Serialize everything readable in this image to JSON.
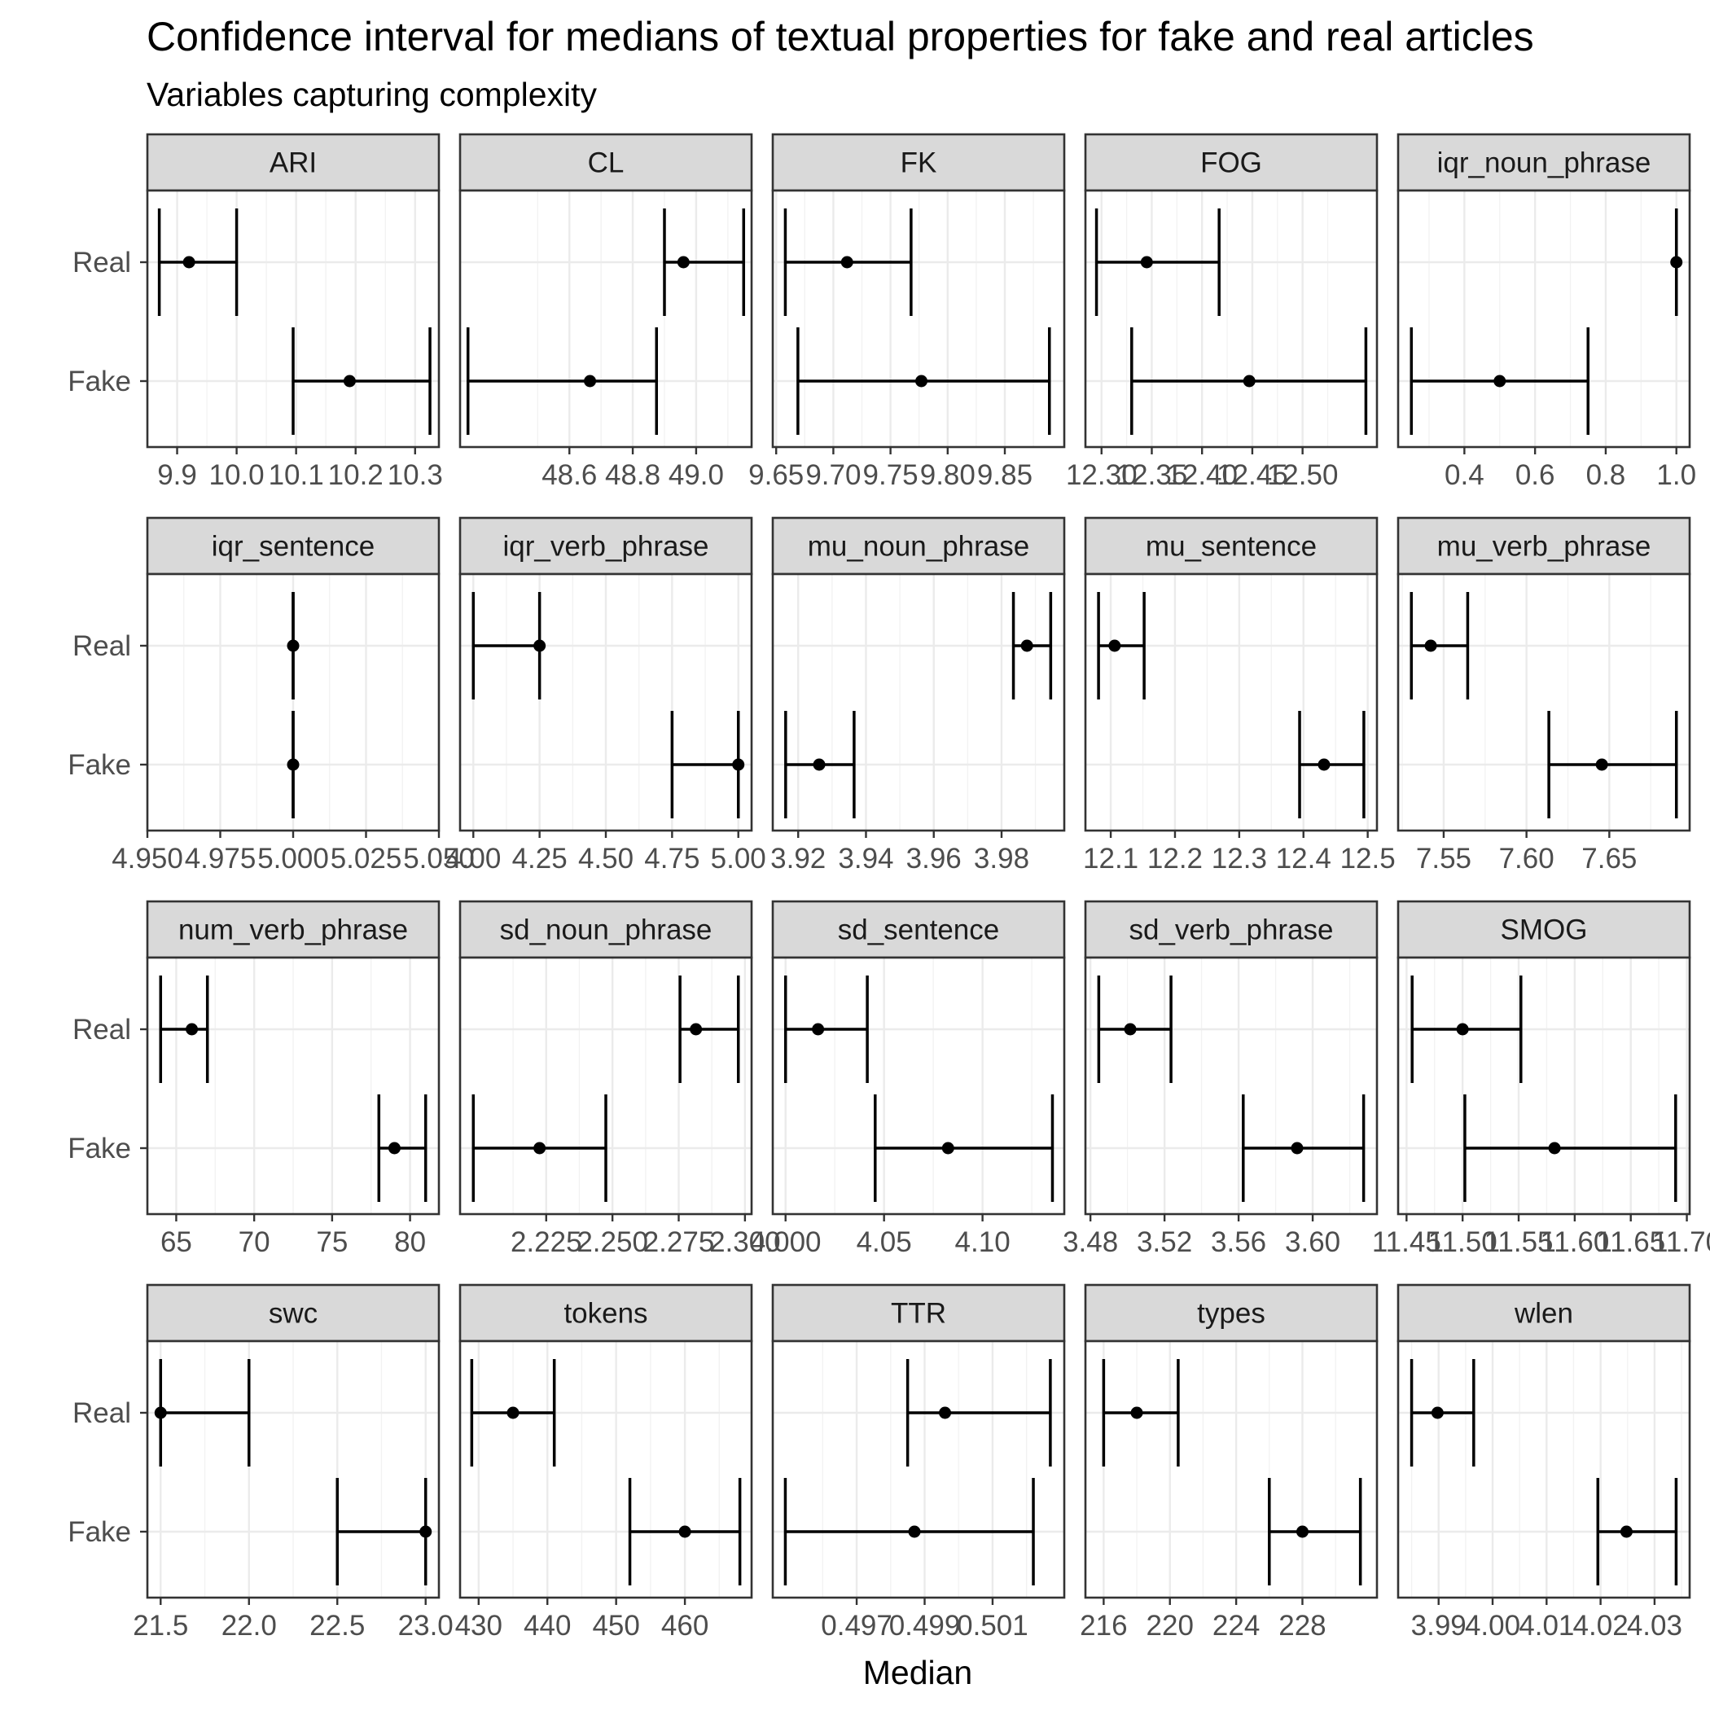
{
  "chart_data": {
    "type": "errorbar",
    "title": "Confidence interval for medians of textual properties for fake and real articles",
    "subtitle": "Variables capturing complexity",
    "xlabel": "Median",
    "ylabel": "",
    "y_categories": [
      "Real",
      "Fake"
    ],
    "facets": [
      {
        "name": "ARI",
        "xlim": [
          9.85,
          10.34
        ],
        "xticks": [
          "9.9",
          "10.0",
          "10.1",
          "10.2",
          "10.3"
        ],
        "xtick_values": [
          9.9,
          10.0,
          10.1,
          10.2,
          10.3
        ],
        "data": [
          {
            "group": "Real",
            "median": 9.92,
            "lower": 9.87,
            "upper": 10.0
          },
          {
            "group": "Fake",
            "median": 10.19,
            "lower": 10.095,
            "upper": 10.325
          }
        ]
      },
      {
        "name": "CL",
        "xlim": [
          48.255,
          49.175
        ],
        "xticks": [
          "48.6",
          "48.8",
          "49.0"
        ],
        "xtick_values": [
          48.6,
          48.8,
          49.0
        ],
        "data": [
          {
            "group": "Real",
            "median": 48.96,
            "lower": 48.9,
            "upper": 49.15
          },
          {
            "group": "Fake",
            "median": 48.665,
            "lower": 48.28,
            "upper": 48.875
          }
        ]
      },
      {
        "name": "FK",
        "xlim": [
          9.647,
          9.902
        ],
        "xticks": [
          "9.65",
          "9.70",
          "9.75",
          "9.80",
          "9.85"
        ],
        "xtick_values": [
          9.65,
          9.7,
          9.75,
          9.8,
          9.85
        ],
        "data": [
          {
            "group": "Real",
            "median": 9.712,
            "lower": 9.658,
            "upper": 9.768
          },
          {
            "group": "Fake",
            "median": 9.777,
            "lower": 9.669,
            "upper": 9.889
          }
        ]
      },
      {
        "name": "FOG",
        "xlim": [
          12.284,
          12.574
        ],
        "xticks": [
          "12.30",
          "12.35",
          "12.40",
          "12.45",
          "12.50"
        ],
        "xtick_values": [
          12.3,
          12.35,
          12.4,
          12.45,
          12.5
        ],
        "data": [
          {
            "group": "Real",
            "median": 12.345,
            "lower": 12.295,
            "upper": 12.417
          },
          {
            "group": "Fake",
            "median": 12.447,
            "lower": 12.33,
            "upper": 12.563
          }
        ]
      },
      {
        "name": "iqr_noun_phrase",
        "xlim": [
          0.2125,
          1.0375
        ],
        "xticks": [
          "0.4",
          "0.6",
          "0.8",
          "1.0"
        ],
        "xtick_values": [
          0.4,
          0.6,
          0.8,
          1.0
        ],
        "data": [
          {
            "group": "Real",
            "median": 1.0,
            "lower": 1.0,
            "upper": 1.0
          },
          {
            "group": "Fake",
            "median": 0.5,
            "lower": 0.25,
            "upper": 0.75
          }
        ]
      },
      {
        "name": "iqr_sentence",
        "xlim": [
          4.95,
          5.05
        ],
        "xticks": [
          "4.950",
          "4.975",
          "5.000",
          "5.025",
          "5.050"
        ],
        "xtick_values": [
          4.95,
          4.975,
          5.0,
          5.025,
          5.05
        ],
        "data": [
          {
            "group": "Real",
            "median": 5.0,
            "lower": 5.0,
            "upper": 5.0
          },
          {
            "group": "Fake",
            "median": 5.0,
            "lower": 5.0,
            "upper": 5.0
          }
        ]
      },
      {
        "name": "iqr_verb_phrase",
        "xlim": [
          3.95,
          5.05
        ],
        "xticks": [
          "4.00",
          "4.25",
          "4.50",
          "4.75",
          "5.00"
        ],
        "xtick_values": [
          4.0,
          4.25,
          4.5,
          4.75,
          5.0
        ],
        "data": [
          {
            "group": "Real",
            "median": 4.25,
            "lower": 4.0,
            "upper": 4.25
          },
          {
            "group": "Fake",
            "median": 5.0,
            "lower": 4.75,
            "upper": 5.0
          }
        ]
      },
      {
        "name": "mu_noun_phrase",
        "xlim": [
          3.9125,
          3.9985
        ],
        "xticks": [
          "3.92",
          "3.94",
          "3.96",
          "3.98"
        ],
        "xtick_values": [
          3.92,
          3.94,
          3.96,
          3.98
        ],
        "data": [
          {
            "group": "Real",
            "median": 3.9875,
            "lower": 3.9835,
            "upper": 3.9945
          },
          {
            "group": "Fake",
            "median": 3.9262,
            "lower": 3.9163,
            "upper": 3.9365
          }
        ]
      },
      {
        "name": "mu_sentence",
        "xlim": [
          12.0606,
          12.5144
        ],
        "xticks": [
          "12.1",
          "12.2",
          "12.3",
          "12.4",
          "12.5"
        ],
        "xtick_values": [
          12.1,
          12.2,
          12.3,
          12.4,
          12.5
        ],
        "data": [
          {
            "group": "Real",
            "median": 12.106,
            "lower": 12.081,
            "upper": 12.152
          },
          {
            "group": "Fake",
            "median": 12.432,
            "lower": 12.394,
            "upper": 12.494
          }
        ]
      },
      {
        "name": "mu_verb_phrase",
        "xlim": [
          7.5225,
          7.6985
        ],
        "xticks": [
          "7.55",
          "7.60",
          "7.65"
        ],
        "xtick_values": [
          7.55,
          7.6,
          7.65
        ],
        "data": [
          {
            "group": "Real",
            "median": 7.5422,
            "lower": 7.5305,
            "upper": 7.5645
          },
          {
            "group": "Fake",
            "median": 7.6455,
            "lower": 7.6135,
            "upper": 7.6905
          }
        ]
      },
      {
        "name": "num_verb_phrase",
        "xlim": [
          63.15,
          81.85
        ],
        "xticks": [
          "65",
          "70",
          "75",
          "80"
        ],
        "xtick_values": [
          65,
          70,
          75,
          80
        ],
        "data": [
          {
            "group": "Real",
            "median": 66,
            "lower": 64,
            "upper": 67
          },
          {
            "group": "Fake",
            "median": 79,
            "lower": 78,
            "upper": 81
          }
        ]
      },
      {
        "name": "sd_noun_phrase",
        "xlim": [
          2.1925,
          2.3025
        ],
        "xticks": [
          "2.225",
          "2.250",
          "2.275",
          "2.300"
        ],
        "xtick_values": [
          2.225,
          2.25,
          2.275,
          2.3
        ],
        "data": [
          {
            "group": "Real",
            "median": 2.2815,
            "lower": 2.2755,
            "upper": 2.2975
          },
          {
            "group": "Fake",
            "median": 2.2225,
            "lower": 2.1975,
            "upper": 2.2475
          }
        ]
      },
      {
        "name": "sd_sentence",
        "xlim": [
          3.9935,
          4.1415
        ],
        "xticks": [
          "4.000",
          "4.05",
          "4.10"
        ],
        "xtick_values": [
          4.0,
          4.05,
          4.1
        ],
        "data": [
          {
            "group": "Real",
            "median": 4.0165,
            "lower": 4.0,
            "upper": 4.0415
          },
          {
            "group": "Fake",
            "median": 4.0825,
            "lower": 4.0455,
            "upper": 4.1355
          }
        ]
      },
      {
        "name": "sd_verb_phrase",
        "xlim": [
          3.4773,
          3.6347
        ],
        "xticks": [
          "3.48",
          "3.52",
          "3.56",
          "3.60"
        ],
        "xtick_values": [
          3.48,
          3.52,
          3.56,
          3.6
        ],
        "data": [
          {
            "group": "Real",
            "median": 3.5015,
            "lower": 3.4845,
            "upper": 3.5235
          },
          {
            "group": "Fake",
            "median": 3.5916,
            "lower": 3.5625,
            "upper": 3.6275
          }
        ]
      },
      {
        "name": "SMOG",
        "xlim": [
          11.4425,
          11.7025
        ],
        "xticks": [
          "11.45",
          "11.50",
          "11.55",
          "11.60",
          "11.65",
          "11.70"
        ],
        "xtick_values": [
          11.45,
          11.5,
          11.55,
          11.6,
          11.65,
          11.7
        ],
        "data": [
          {
            "group": "Real",
            "median": 11.5,
            "lower": 11.455,
            "upper": 11.552
          },
          {
            "group": "Fake",
            "median": 11.582,
            "lower": 11.502,
            "upper": 11.69
          }
        ]
      },
      {
        "name": "swc",
        "xlim": [
          21.425,
          23.075
        ],
        "xticks": [
          "21.5",
          "22.0",
          "22.5",
          "23.0"
        ],
        "xtick_values": [
          21.5,
          22.0,
          22.5,
          23.0
        ],
        "data": [
          {
            "group": "Real",
            "median": 21.5,
            "lower": 21.5,
            "upper": 22.0
          },
          {
            "group": "Fake",
            "median": 23.0,
            "lower": 22.5,
            "upper": 23.0
          }
        ]
      },
      {
        "name": "tokens",
        "xlim": [
          427.3,
          469.7
        ],
        "xticks": [
          "430",
          "440",
          "450",
          "460"
        ],
        "xtick_values": [
          430,
          440,
          450,
          460
        ],
        "data": [
          {
            "group": "Real",
            "median": 435,
            "lower": 429,
            "upper": 441
          },
          {
            "group": "Fake",
            "median": 460,
            "lower": 452,
            "upper": 468
          }
        ]
      },
      {
        "name": "TTR",
        "xlim": [
          0.49453,
          0.50311
        ],
        "xticks": [
          "0.497",
          "0.499",
          "0.501"
        ],
        "xtick_values": [
          0.497,
          0.499,
          0.501
        ],
        "data": [
          {
            "group": "Real",
            "median": 0.4996,
            "lower": 0.4985,
            "upper": 0.5027
          },
          {
            "group": "Fake",
            "median": 0.4987,
            "lower": 0.4949,
            "upper": 0.5022
          }
        ]
      },
      {
        "name": "types",
        "xlim": [
          214.9,
          232.5
        ],
        "xticks": [
          "216",
          "220",
          "224",
          "228"
        ],
        "xtick_values": [
          216,
          220,
          224,
          228
        ],
        "data": [
          {
            "group": "Real",
            "median": 218,
            "lower": 216,
            "upper": 220.5
          },
          {
            "group": "Fake",
            "median": 228,
            "lower": 226,
            "upper": 231.5
          }
        ]
      },
      {
        "name": "wlen",
        "xlim": [
          3.9825,
          4.0365
        ],
        "xticks": [
          "3.99",
          "4.00",
          "4.01",
          "4.02",
          "4.03"
        ],
        "xtick_values": [
          3.99,
          4.0,
          4.01,
          4.02,
          4.03
        ],
        "data": [
          {
            "group": "Real",
            "median": 3.9898,
            "lower": 3.985,
            "upper": 3.9965
          },
          {
            "group": "Fake",
            "median": 4.0248,
            "lower": 4.0195,
            "upper": 4.034
          }
        ]
      }
    ]
  }
}
